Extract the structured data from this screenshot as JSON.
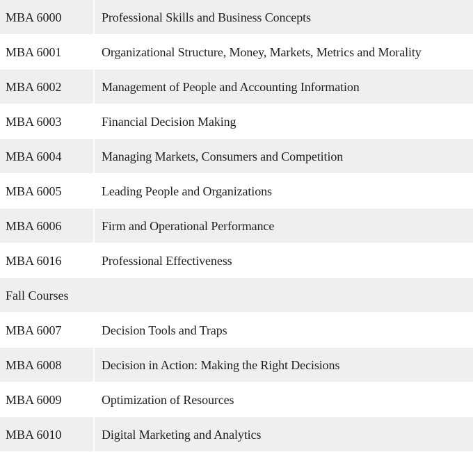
{
  "courses_table": {
    "rows": [
      {
        "type": "course",
        "code": "MBA 6000",
        "title": "Professional Skills and Business Concepts"
      },
      {
        "type": "course",
        "code": "MBA 6001",
        "title": "Organizational Structure, Money, Markets, Metrics and Morality"
      },
      {
        "type": "course",
        "code": "MBA 6002",
        "title": "Management of People and Accounting Information"
      },
      {
        "type": "course",
        "code": "MBA 6003",
        "title": "Financial Decision Making"
      },
      {
        "type": "course",
        "code": "MBA 6004",
        "title": "Managing Markets, Consumers and Competition"
      },
      {
        "type": "course",
        "code": "MBA 6005",
        "title": "Leading People and Organizations"
      },
      {
        "type": "course",
        "code": "MBA 6006",
        "title": "Firm and Operational Performance"
      },
      {
        "type": "course",
        "code": "MBA 6016",
        "title": "Professional Effectiveness"
      },
      {
        "type": "section",
        "label": "Fall Courses"
      },
      {
        "type": "course",
        "code": "MBA 6007",
        "title": "Decision Tools and Traps"
      },
      {
        "type": "course",
        "code": "MBA 6008",
        "title": "Decision in Action: Making the Right Decisions"
      },
      {
        "type": "course",
        "code": "MBA 6009",
        "title": "Optimization of Resources"
      },
      {
        "type": "course",
        "code": "MBA 6010",
        "title": "Digital Marketing and Analytics"
      }
    ]
  }
}
